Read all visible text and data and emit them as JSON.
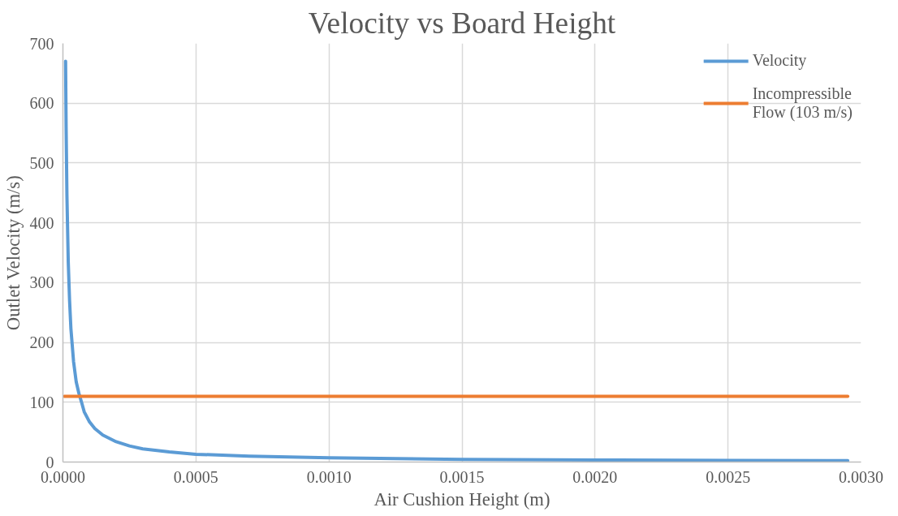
{
  "chart_data": {
    "type": "line",
    "title": "Velocity vs Board Height",
    "xlabel": "Air Cushion Height (m)",
    "ylabel": "Outlet Velocity (m/s)",
    "xlim": [
      0,
      0.003
    ],
    "ylim": [
      0,
      700
    ],
    "xticks": [
      {
        "value": 0,
        "label": "0.0000"
      },
      {
        "value": 0.0005,
        "label": "0.0005"
      },
      {
        "value": 0.001,
        "label": "0.0010"
      },
      {
        "value": 0.0015,
        "label": "0.0015"
      },
      {
        "value": 0.002,
        "label": "0.0020"
      },
      {
        "value": 0.0025,
        "label": "0.0025"
      },
      {
        "value": 0.003,
        "label": "0.0030"
      }
    ],
    "yticks": [
      0,
      100,
      200,
      300,
      400,
      500,
      600,
      700
    ],
    "grid": true,
    "legend": "top right",
    "marker": "none",
    "line_style": "solid",
    "series": [
      {
        "name": "Velocity",
        "color": "#5b9bd5",
        "x": [
          1e-05,
          1.2e-05,
          1.5e-05,
          2e-05,
          2.5e-05,
          3e-05,
          4e-05,
          5e-05,
          6e-05,
          7e-05,
          8e-05,
          0.0001,
          0.00012,
          0.00015,
          0.0002,
          0.00025,
          0.0003,
          0.0004,
          0.0005,
          0.0007,
          0.001,
          0.0015,
          0.002,
          0.0025,
          0.00295
        ],
        "values": [
          670,
          560,
          447,
          335,
          270,
          223,
          168,
          134,
          115,
          100,
          84,
          67,
          56,
          45,
          34,
          27,
          22,
          17,
          13,
          10,
          7,
          4.5,
          3.4,
          2.7,
          2.3
        ]
      },
      {
        "name": "Incompressible Flow (103 m/s)",
        "color": "#ed7d31",
        "x": [
          5e-06,
          0.00295
        ],
        "values": [
          110,
          110
        ]
      }
    ]
  }
}
